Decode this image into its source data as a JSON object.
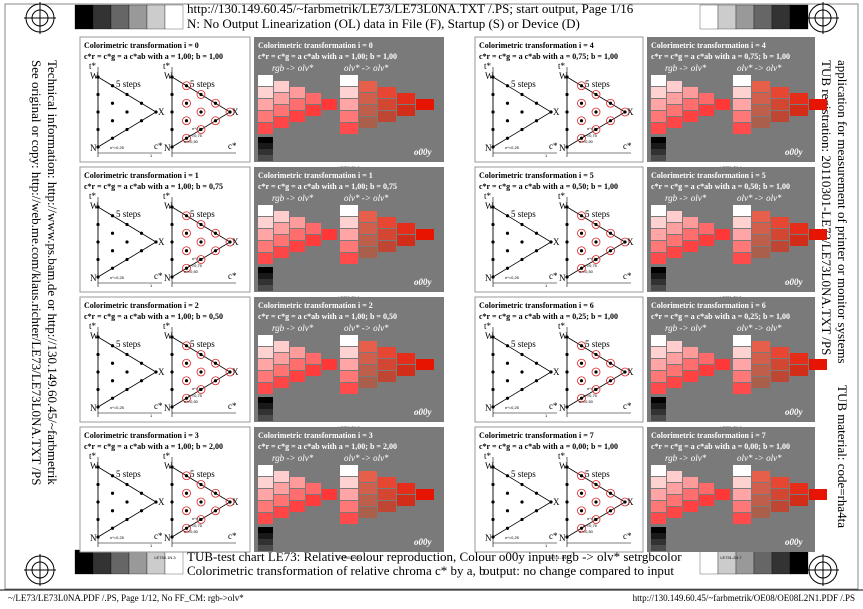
{
  "header": {
    "line1": "http://130.149.60.45/~farbmetrik/LE73/LE73L0NA.TXT /.PS; start output, Page 1/16",
    "line2": "N: No Output Linearization (OL) data in File (F), Startup (S) or Device (D)"
  },
  "left_side": [
    "See original or copy: http://web.me.com/klaus.richter/LE73/LE73L0NA.TXT /PS",
    "Technical information: http://www.ps.bam.de or http://130.149.60.45/~farbmetrik"
  ],
  "right_side": [
    "TUB registration: 20110301-LE73/LE73L0NA.TXT /PS",
    "application for measurement of printer or monitor systems",
    "TUB material: code=rha4ta"
  ],
  "diagram_labels": {
    "steps": "5 steps",
    "w": "W",
    "n": "N",
    "x": "X",
    "t": "t*",
    "c": "c*",
    "n1": "n*=1",
    "n075": "n*=0,75",
    "n050": "n*=0,50",
    "n025": "n*=0,25",
    "one": "1"
  },
  "table_labels": {
    "rgb": "rgb -> olv*",
    "olv": "olv* -> olv*",
    "code": "o00y"
  },
  "panels": [
    {
      "title": "Colorimetric transformation i = 0",
      "formula": "c*r = c*g = a c*ab with a = 1,00; b = 1,00",
      "code_left": "LE730-1N.0",
      "code_right": "LE730-2N.0"
    },
    {
      "title": "Colorimetric transformation i = 1",
      "formula": "c*r = c*g = a c*ab with a = 1,00; b = 0,75",
      "code_left": "LE730-1N.1",
      "code_right": "LE730-2N.1"
    },
    {
      "title": "Colorimetric transformation i = 2",
      "formula": "c*r = c*g = a c*ab with a = 1,00; b = 0,50",
      "code_left": "LE730-1N.2",
      "code_right": "LE730-2N.2"
    },
    {
      "title": "Colorimetric transformation i = 3",
      "formula": "c*r = c*g = a c*ab with a = 1,00; b = 2,00",
      "code_left": "LE730-1N.3",
      "code_right": "LE730-2N.3"
    },
    {
      "title": "Colorimetric transformation i = 4",
      "formula": "c*r = c*g = a c*ab with a = 0,75; b = 1,00",
      "code_left": "LE731-1N.4",
      "code_right": "LE731-2N.4"
    },
    {
      "title": "Colorimetric transformation i = 5",
      "formula": "c*r = c*g = a c*ab with a = 0,50; b = 1,00",
      "code_left": "LE731-1N.5",
      "code_right": "LE731-2N.5"
    },
    {
      "title": "Colorimetric transformation i = 6",
      "formula": "c*r = c*g = a c*ab with a = 0,25; b = 1,00",
      "code_left": "LE731-1N.6",
      "code_right": "LE731-2N.6"
    },
    {
      "title": "Colorimetric transformation i = 7",
      "formula": "c*r = c*g = a c*ab with a = 0,00; b = 1,00",
      "code_left": "LE731-1N.7",
      "code_right": "LE731-2N.7"
    }
  ],
  "footer": {
    "line1": "TUB-test chart LE73: Relative colour reproduction, Colour o00y input: rgb -> olv* setrgbcolor",
    "line2": "Colorimetric transformation of relative chroma c* by a, b",
    "line2_right": "output: no change compared to input",
    "bottom_left": "~/LE73/LE73L0NA.PDF /.PS, Page 1/12, No FF_CM: rgb->olv*",
    "bottom_right": "http://130.149.60.45/~farbmetrik/OE08/OE08L2N1.PDF /.PS"
  }
}
